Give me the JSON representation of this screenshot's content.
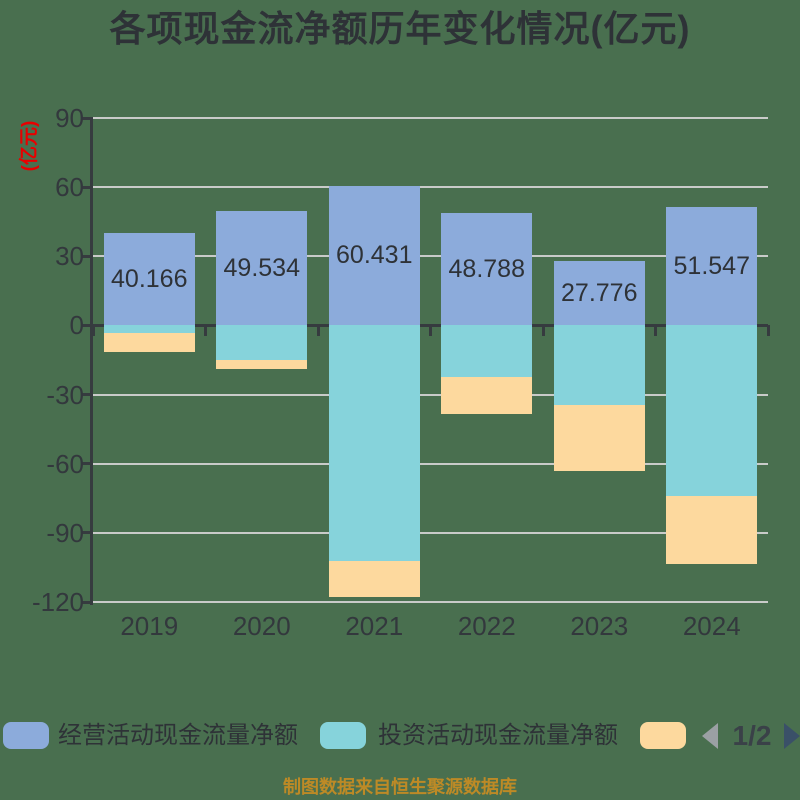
{
  "app": {
    "title": "各项现金流净额历年变化情况(亿元)"
  },
  "y_axis": {
    "name": "(亿元)",
    "ticks": [
      90,
      60,
      30,
      0,
      -30,
      -60,
      -90,
      -120
    ]
  },
  "x_axis": {
    "categories": [
      "2019",
      "2020",
      "2021",
      "2022",
      "2023",
      "2024"
    ]
  },
  "chart_data": {
    "type": "bar",
    "stacked": true,
    "title": "各项现金流净额历年变化情况(亿元)",
    "categories": [
      "2019",
      "2020",
      "2021",
      "2022",
      "2023",
      "2024"
    ],
    "ylim": [
      -120,
      90
    ],
    "y_ticks": [
      90,
      60,
      30,
      0,
      -30,
      -60,
      -90,
      -120
    ],
    "grid": true,
    "legend_position": "bottom",
    "series": [
      {
        "name": "经营活动现金流量净额",
        "color": "#8CABDB",
        "values": [
          40.166,
          49.534,
          60.431,
          48.788,
          27.776,
          51.547
        ],
        "data_labels": [
          "40.166",
          "49.534",
          "60.431",
          "48.788",
          "27.776",
          "51.547"
        ]
      },
      {
        "name": "投资活动现金流量净额",
        "color": "#86D3DB",
        "values": [
          -3.5,
          -15,
          -102,
          -22.5,
          -34.5,
          -74
        ]
      },
      {
        "name": "",
        "color": "#FDD99E",
        "values": [
          -8,
          -4,
          -16,
          -16,
          -28.5,
          -29.5
        ]
      }
    ]
  },
  "legend": {
    "items": [
      {
        "label": "经营活动现金流量净额",
        "color": "#8CABDB"
      },
      {
        "label": "投资活动现金流量净额",
        "color": "#86D3DB"
      },
      {
        "label": "",
        "color": "#FDD99E"
      }
    ],
    "pagination": {
      "page": "1/2"
    }
  },
  "footer": {
    "source": "制图数据来自恒生聚源数据库"
  },
  "colors": {
    "background": "#496F4F",
    "grid": "#C9CBC9",
    "axis": "#363B3F",
    "text": "#33383D",
    "axis_name": "#E80000",
    "footer": "#BD8A26",
    "pager_prev": "#9BA0A4",
    "pager_next": "#3A5068",
    "pager_text": "#3A4148"
  }
}
